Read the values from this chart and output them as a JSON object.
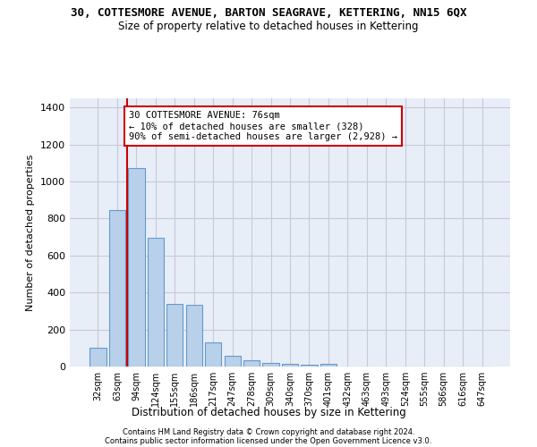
{
  "title": "30, COTTESMORE AVENUE, BARTON SEAGRAVE, KETTERING, NN15 6QX",
  "subtitle": "Size of property relative to detached houses in Kettering",
  "xlabel": "Distribution of detached houses by size in Kettering",
  "ylabel": "Number of detached properties",
  "categories": [
    "32sqm",
    "63sqm",
    "94sqm",
    "124sqm",
    "155sqm",
    "186sqm",
    "217sqm",
    "247sqm",
    "278sqm",
    "309sqm",
    "340sqm",
    "370sqm",
    "401sqm",
    "432sqm",
    "463sqm",
    "493sqm",
    "524sqm",
    "555sqm",
    "586sqm",
    "616sqm",
    "647sqm"
  ],
  "values": [
    100,
    845,
    1075,
    697,
    340,
    335,
    130,
    60,
    35,
    20,
    15,
    10,
    15,
    0,
    0,
    0,
    0,
    0,
    0,
    0,
    0
  ],
  "bar_color": "#b8d0ea",
  "bar_edge_color": "#6699cc",
  "vline_color": "#cc0000",
  "vline_pos": 1.5,
  "annotation_text": "30 COTTESMORE AVENUE: 76sqm\n← 10% of detached houses are smaller (328)\n90% of semi-detached houses are larger (2,928) →",
  "annotation_box_color": "#cc0000",
  "ylim": [
    0,
    1450
  ],
  "yticks": [
    0,
    200,
    400,
    600,
    800,
    1000,
    1200,
    1400
  ],
  "grid_color": "#c8c8d8",
  "bg_color": "#e8eef8",
  "footer1": "Contains HM Land Registry data © Crown copyright and database right 2024.",
  "footer2": "Contains public sector information licensed under the Open Government Licence v3.0."
}
